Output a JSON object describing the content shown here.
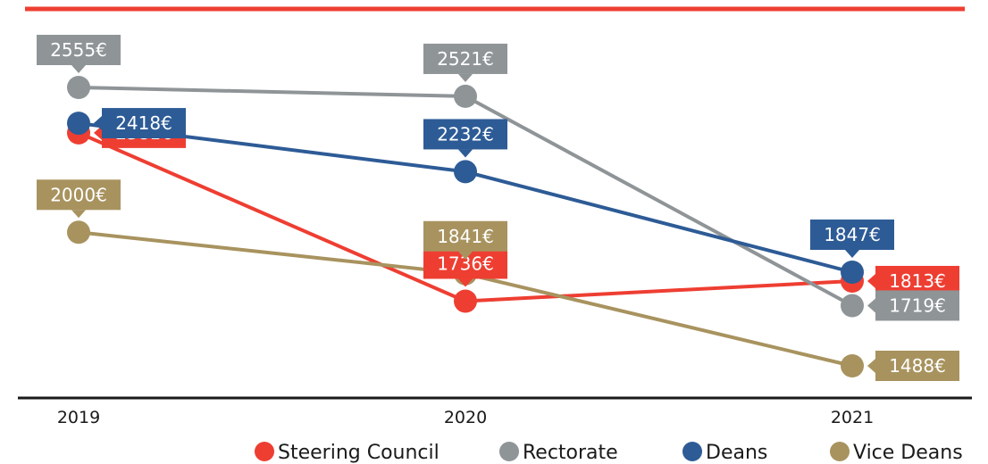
{
  "chart_data": {
    "type": "line",
    "x": [
      "2019",
      "2020",
      "2021"
    ],
    "ylim": [
      1400,
      2600
    ],
    "grid": false,
    "legend": "bottom-right",
    "series": [
      {
        "name": "Steering Council",
        "color": "#ee3e32",
        "values": [
          2381,
          1736,
          1813
        ],
        "labels": [
          "2381€",
          "1736€",
          "1813€"
        ]
      },
      {
        "name": "Rectorate",
        "color": "#8f9497",
        "values": [
          2555,
          2521,
          1719
        ],
        "labels": [
          "2555€",
          "2521€",
          "1719€"
        ]
      },
      {
        "name": "Deans",
        "color": "#2d5b96",
        "values": [
          2418,
          2232,
          1847
        ],
        "labels": [
          "2418€",
          "2232€",
          "1847€"
        ]
      },
      {
        "name": "Vice Deans",
        "color": "#a8935f",
        "values": [
          2000,
          1841,
          1488
        ],
        "labels": [
          "2000€",
          "1841€",
          "1488€"
        ]
      }
    ]
  },
  "colors": {
    "top_rule": "#ee3e32",
    "axis": "#1a1a1a"
  }
}
